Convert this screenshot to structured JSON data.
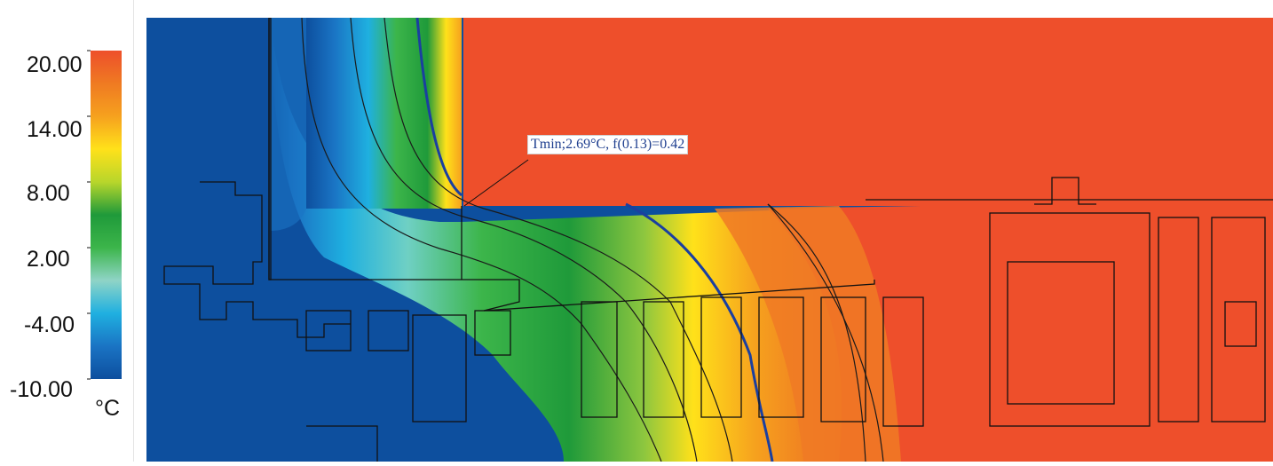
{
  "chart_data": {
    "type": "heatmap",
    "colorbar": {
      "ticks": [
        "20.00",
        "14.00",
        "8.00",
        "2.00",
        "-4.00",
        "-10.00"
      ],
      "range": [
        -10,
        20
      ],
      "unit": "°C",
      "colors": [
        "#0d4f9e",
        "#1a74c4",
        "#1fb0e0",
        "#8fd4c6",
        "#3cb54a",
        "#1f9a3a",
        "#b8d62b",
        "#ffe11a",
        "#f6a11e",
        "#ef7a22",
        "#ee4f2b"
      ]
    },
    "annotation": "Tmin;2.69°C, f(0.13)=0.42",
    "isotherm_color": "#1a3fa0",
    "hot_color": "#ee4f2b",
    "cold_color": "#0d4f9e"
  }
}
